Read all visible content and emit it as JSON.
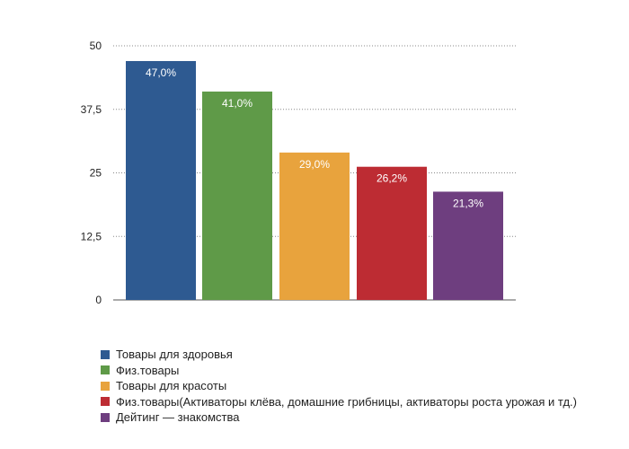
{
  "chart_data": {
    "type": "bar",
    "categories": [
      "Товары для здоровья",
      "Физ.товары",
      "Товары для красоты",
      "Физ.товары(Активаторы клёва, домашние грибницы, активаторы роста урожая и тд.)",
      "Дейтинг — знакомства"
    ],
    "values": [
      47.0,
      41.0,
      29.0,
      26.2,
      21.3
    ],
    "data_labels": [
      "47,0%",
      "41,0%",
      "29,0%",
      "26,2%",
      "21,3%"
    ],
    "colors": [
      "#2e5a91",
      "#5f9a48",
      "#e8a33d",
      "#bd2c33",
      "#6e3e7f"
    ],
    "yticks": [
      {
        "value": 0,
        "label": "0"
      },
      {
        "value": 12.5,
        "label": "12,5"
      },
      {
        "value": 25,
        "label": "25"
      },
      {
        "value": 37.5,
        "label": "37,5"
      },
      {
        "value": 50,
        "label": "50"
      }
    ],
    "ylim": [
      0,
      50
    ],
    "grid": "dotted-horizontal",
    "legend_position": "bottom",
    "title": "",
    "xlabel": "",
    "ylabel": ""
  }
}
